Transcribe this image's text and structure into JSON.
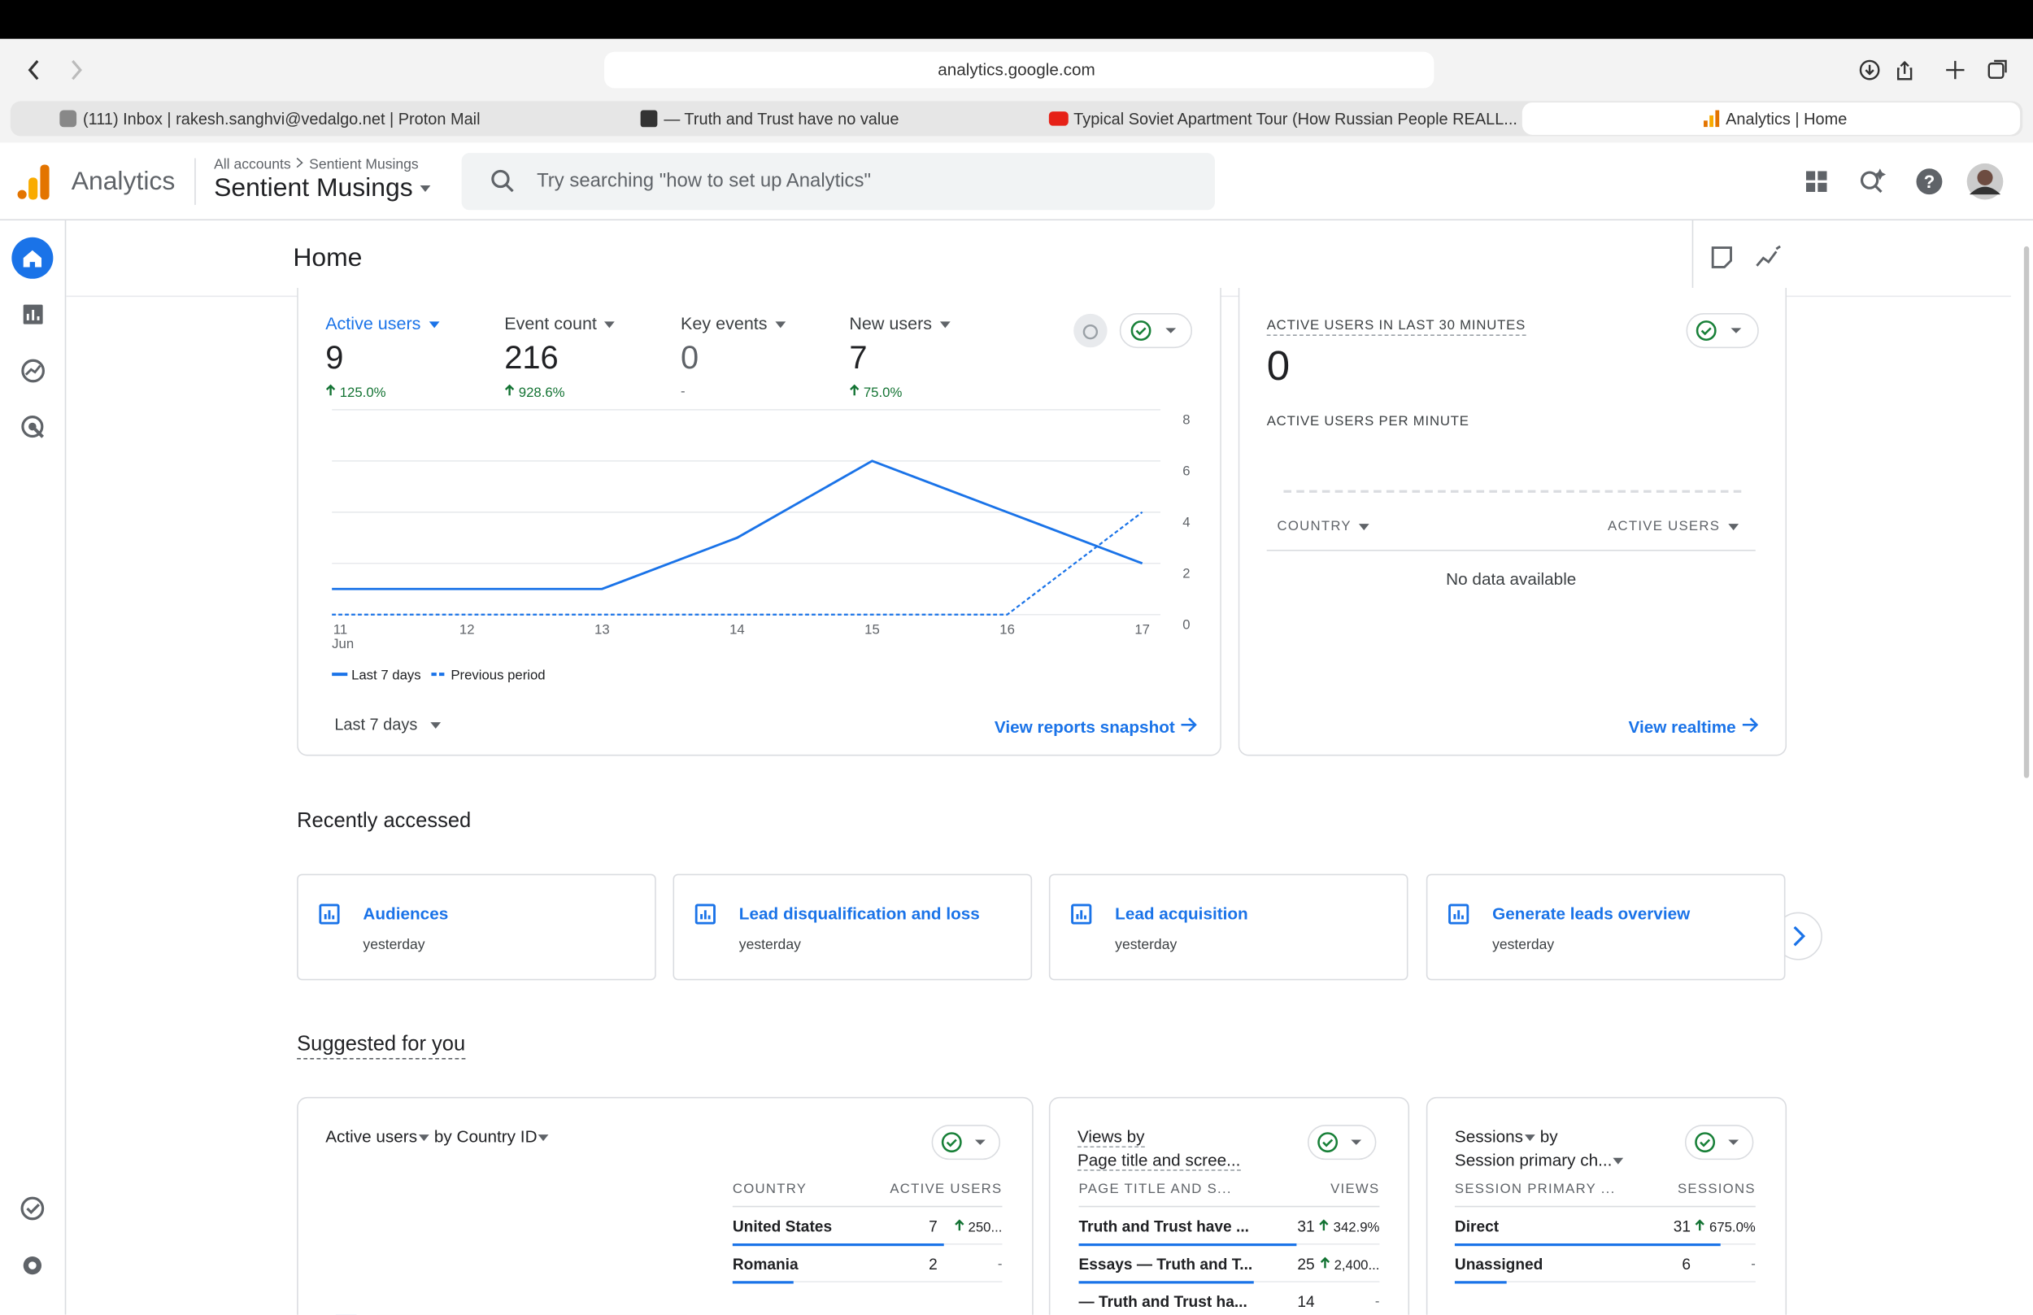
{
  "browser": {
    "url": "analytics.google.com",
    "tabs": [
      "(111) Inbox | rakesh.sanghvi@vedalgo.net | Proton Mail",
      "— Truth and Trust have no value",
      "Typical Soviet Apartment Tour (How Russian People REALL...",
      "Analytics | Home"
    ]
  },
  "header": {
    "product": "Analytics",
    "breadcrumb": [
      "All accounts",
      "Sentient Musings"
    ],
    "property": "Sentient Musings",
    "search_placeholder": "Try searching \"how to set up Analytics\""
  },
  "page_title": "Home",
  "metrics": [
    {
      "label": "Active users",
      "value": "9",
      "change": "125.0%"
    },
    {
      "label": "Event count",
      "value": "216",
      "change": "928.6%"
    },
    {
      "label": "Key events",
      "value": "0",
      "change": "-"
    },
    {
      "label": "New users",
      "value": "7",
      "change": "75.0%"
    }
  ],
  "chart": {
    "type": "line",
    "x": [
      "11",
      "12",
      "13",
      "14",
      "15",
      "16",
      "17"
    ],
    "x_sublabel": "Jun",
    "ylim": [
      0,
      8
    ],
    "yticks": [
      0,
      2,
      4,
      6,
      8
    ],
    "grid": true,
    "series": [
      {
        "name": "Last 7 days",
        "color": "#1a73e8",
        "style": "solid",
        "values": [
          1,
          1,
          1,
          3,
          6,
          4,
          2
        ]
      },
      {
        "name": "Previous period",
        "color": "#1a73e8",
        "style": "dashed",
        "values": [
          0,
          0,
          0,
          0,
          0,
          0,
          4
        ]
      }
    ]
  },
  "date_range": "Last 7 days",
  "snapshot_link": "View reports snapshot",
  "realtime": {
    "title": "ACTIVE USERS IN LAST 30 MINUTES",
    "value": "0",
    "subtitle": "ACTIVE USERS PER MINUTE",
    "columns": [
      "COUNTRY",
      "ACTIVE USERS"
    ],
    "empty": "No data available",
    "link": "View realtime"
  },
  "recent": {
    "title": "Recently accessed",
    "items": [
      {
        "name": "Audiences",
        "when": "yesterday"
      },
      {
        "name": "Lead disqualification and loss",
        "when": "yesterday"
      },
      {
        "name": "Lead acquisition",
        "when": "yesterday"
      },
      {
        "name": "Generate leads overview",
        "when": "yesterday"
      }
    ]
  },
  "suggested": {
    "title": "Suggested for you",
    "cards": [
      {
        "title": [
          "Active users",
          "by Country ID"
        ],
        "columns": [
          "COUNTRY",
          "ACTIVE USERS"
        ],
        "rows": [
          {
            "name": "United States",
            "value": 7,
            "change": "250..."
          },
          {
            "name": "Romania",
            "value": 2,
            "change": "-"
          }
        ]
      },
      {
        "title": [
          "Views by",
          "Page title and scree..."
        ],
        "columns": [
          "PAGE TITLE AND S...",
          "VIEWS"
        ],
        "rows": [
          {
            "name": "Truth and Trust have ...",
            "value": 31,
            "change": "342.9%"
          },
          {
            "name": "Essays — Truth and T...",
            "value": 25,
            "change": "2,400..."
          },
          {
            "name": "— Truth and Trust ha...",
            "value": 14,
            "change": "-"
          }
        ]
      },
      {
        "title": [
          "Sessions",
          "by",
          "Session primary ch..."
        ],
        "columns": [
          "SESSION PRIMARY ...",
          "SESSIONS"
        ],
        "rows": [
          {
            "name": "Direct",
            "value": 31,
            "change": "675.0%"
          },
          {
            "name": "Unassigned",
            "value": 6,
            "change": "-"
          }
        ]
      }
    ]
  }
}
